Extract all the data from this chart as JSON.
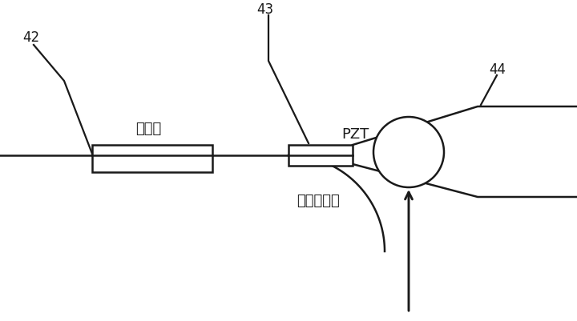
{
  "bg_color": "#ffffff",
  "line_color": "#1a1a1a",
  "line_width": 1.8,
  "label_42": "42",
  "label_43": "43",
  "label_44": "44",
  "label_pzt": "PZT",
  "label_polarizer": "偏振器",
  "label_coupler": "调制耦合器",
  "fig_width": 7.2,
  "fig_height": 4.02,
  "dpi": 100
}
